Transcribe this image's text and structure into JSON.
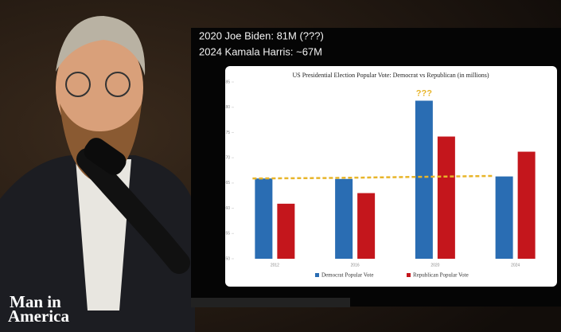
{
  "overlay": {
    "lines": [
      "2020 Joe Biden: 81M (???)",
      "2024 Kamala Harris: ~67M"
    ]
  },
  "logo": {
    "line1": "Man in",
    "line2": "America"
  },
  "chart_data": {
    "type": "bar",
    "title": "US Presidential Election Popular Vote: Democrat vs Republican (in millions)",
    "categories": [
      "2012",
      "2016",
      "2020",
      "2024"
    ],
    "series": [
      {
        "name": "Democrat Popular Vote",
        "color": "#2a6db3",
        "values": [
          65.9,
          65.8,
          81.3,
          66.3
        ]
      },
      {
        "name": "Republican Popular Vote",
        "color": "#c4161c",
        "values": [
          60.9,
          63.0,
          74.2,
          71.2
        ]
      }
    ],
    "trend_line": {
      "color": "#e8b52a",
      "values": [
        65.9,
        66.0,
        66.2,
        66.4
      ]
    },
    "annotation": "???",
    "ylim": [
      50,
      85
    ],
    "yticks": [
      50,
      55,
      60,
      65,
      70,
      75,
      80,
      85
    ],
    "grid": false,
    "legend": "bottom"
  }
}
